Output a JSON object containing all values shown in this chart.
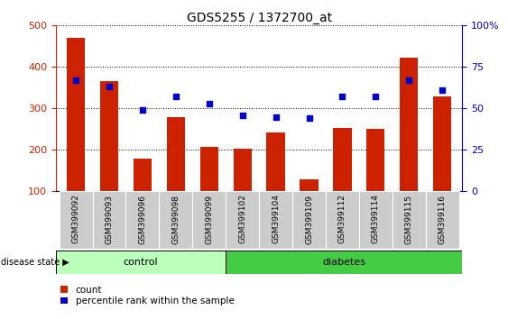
{
  "title": "GDS5255 / 1372700_at",
  "samples": [
    "GSM399092",
    "GSM399093",
    "GSM399096",
    "GSM399098",
    "GSM399099",
    "GSM399102",
    "GSM399104",
    "GSM399109",
    "GSM399112",
    "GSM399114",
    "GSM399115",
    "GSM399116"
  ],
  "counts": [
    470,
    365,
    180,
    278,
    207,
    202,
    243,
    130,
    253,
    250,
    423,
    330
  ],
  "percentiles": [
    67,
    63,
    49,
    57,
    53,
    46,
    45,
    44,
    57,
    57,
    67,
    61
  ],
  "ylim_left": [
    100,
    500
  ],
  "ylim_right": [
    0,
    100
  ],
  "yticks_left": [
    100,
    200,
    300,
    400,
    500
  ],
  "yticks_right": [
    0,
    25,
    50,
    75,
    100
  ],
  "yticklabels_right": [
    "0",
    "25",
    "50",
    "75",
    "100%"
  ],
  "bar_color": "#cc2200",
  "dot_color": "#0000cc",
  "bar_baseline": 100,
  "control_samples": 5,
  "disease_state_label": "disease state",
  "control_label": "control",
  "diabetes_label": "diabetes",
  "control_color": "#bbffbb",
  "diabetes_color": "#44cc44",
  "legend_count": "count",
  "legend_percentile": "percentile rank within the sample",
  "left_axis_color": "#cc2200",
  "right_axis_color": "#0000cc"
}
